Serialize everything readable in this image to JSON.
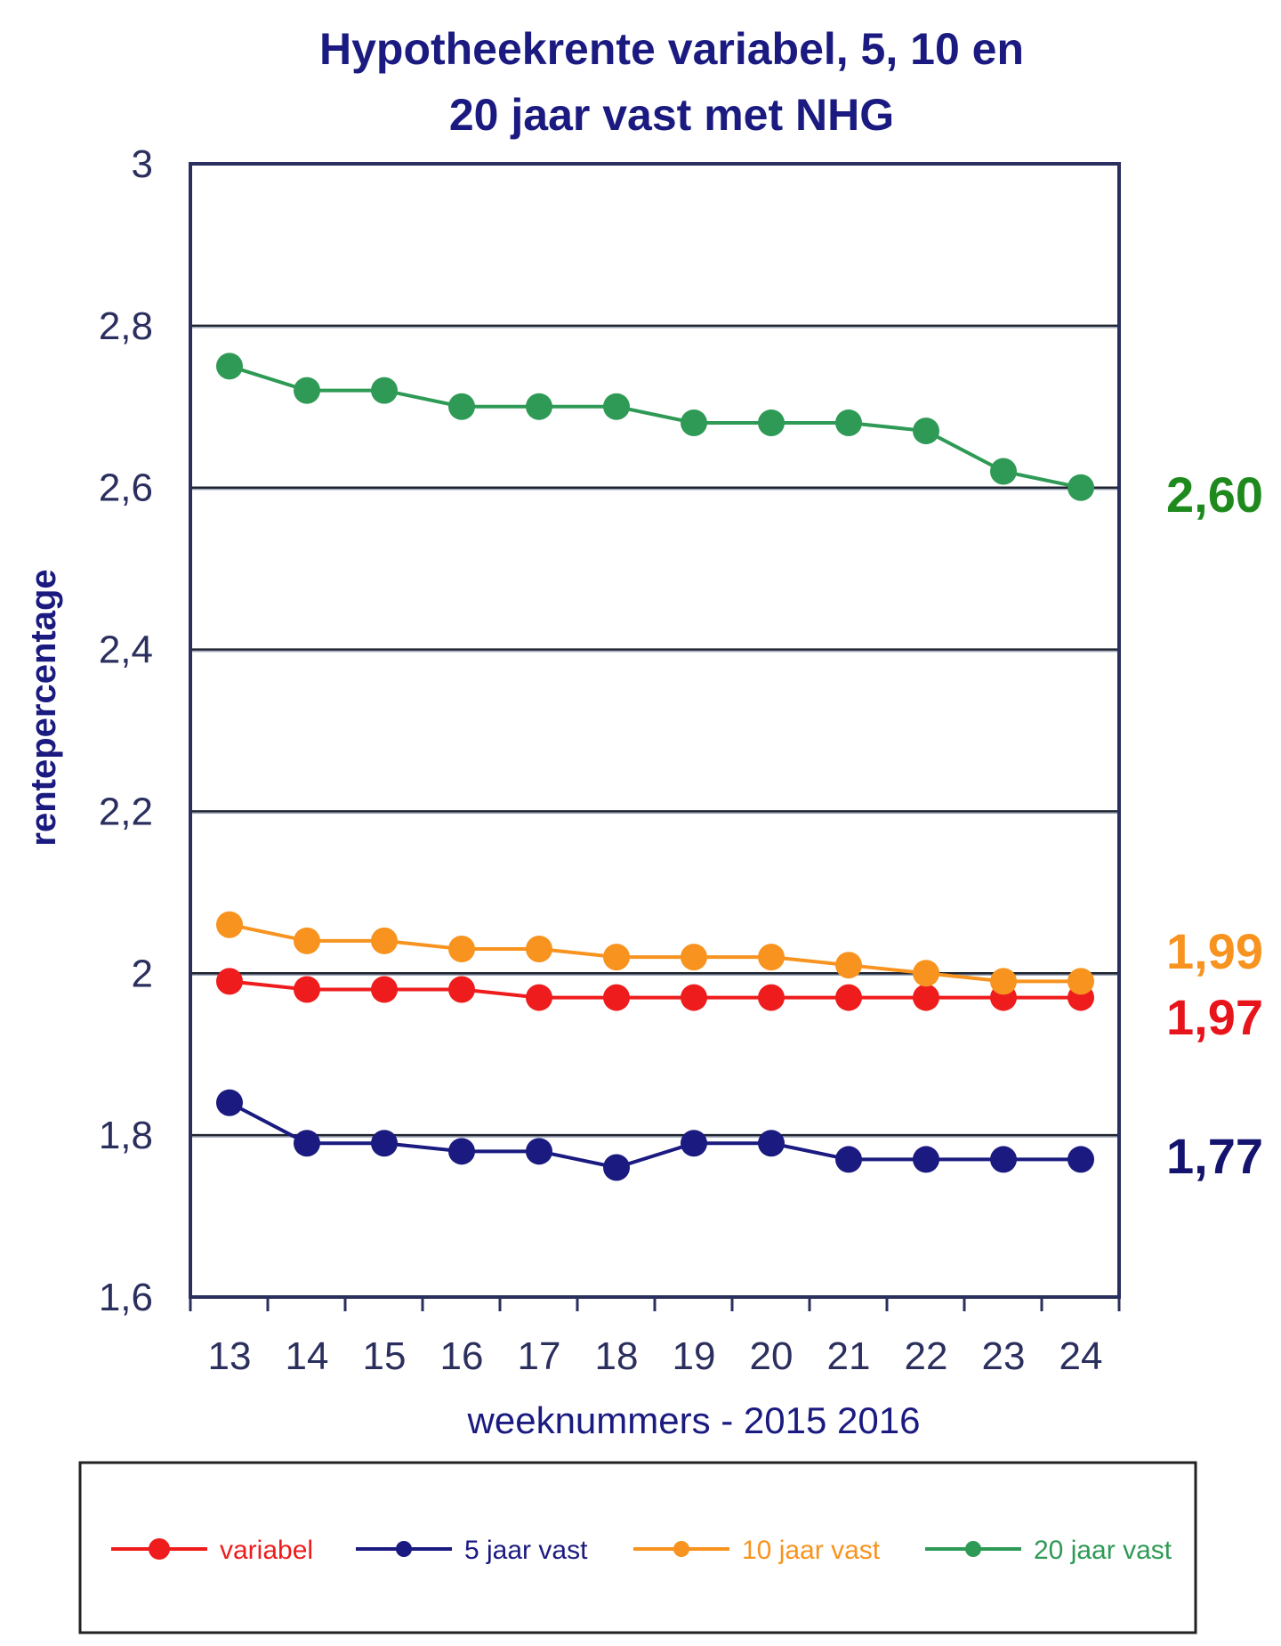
{
  "chart_data": {
    "type": "line",
    "title": [
      "Hypotheekrente variabel, 5, 10 en",
      "20 jaar vast met NHG"
    ],
    "xlabel": "weeknummers - 2015 2016",
    "ylabel": "rentepercentage",
    "categories": [
      "13",
      "14",
      "15",
      "16",
      "17",
      "18",
      "19",
      "20",
      "21",
      "22",
      "23",
      "24"
    ],
    "ylim": [
      1.6,
      3.0
    ],
    "yticks": [
      {
        "value": 1.6,
        "label": "1,6"
      },
      {
        "value": 1.8,
        "label": "1,8"
      },
      {
        "value": 2.0,
        "label": "2"
      },
      {
        "value": 2.2,
        "label": "2,2"
      },
      {
        "value": 2.4,
        "label": "2,4"
      },
      {
        "value": 2.6,
        "label": "2,6"
      },
      {
        "value": 2.8,
        "label": "2,8"
      },
      {
        "value": 3.0,
        "label": "3"
      }
    ],
    "grid": true,
    "legend_position": "bottom",
    "series": [
      {
        "name": "variabel",
        "color": "#ee1c1c",
        "end_label": "1,97",
        "values": [
          1.99,
          1.98,
          1.98,
          1.98,
          1.97,
          1.97,
          1.97,
          1.97,
          1.97,
          1.97,
          1.97,
          1.97
        ]
      },
      {
        "name": "5 jaar vast",
        "color": "#1a1a80",
        "end_label": "1,77",
        "values": [
          1.84,
          1.79,
          1.79,
          1.78,
          1.78,
          1.76,
          1.79,
          1.79,
          1.77,
          1.77,
          1.77,
          1.77
        ]
      },
      {
        "name": "10 jaar vast",
        "color": "#f7931e",
        "end_label": "1,99",
        "values": [
          2.06,
          2.04,
          2.04,
          2.03,
          2.03,
          2.02,
          2.02,
          2.02,
          2.01,
          2.0,
          1.99,
          1.99
        ]
      },
      {
        "name": "20 jaar vast",
        "color": "#2e9a55",
        "end_label": "2,60",
        "values": [
          2.75,
          2.72,
          2.72,
          2.7,
          2.7,
          2.7,
          2.68,
          2.68,
          2.68,
          2.67,
          2.62,
          2.6
        ]
      }
    ],
    "end_label_colors": {
      "variabel": "#e8141c",
      "5 jaar vast": "#14146e",
      "10 jaar vast": "#f7931e",
      "20 jaar vast": "#1e8a1e"
    }
  }
}
